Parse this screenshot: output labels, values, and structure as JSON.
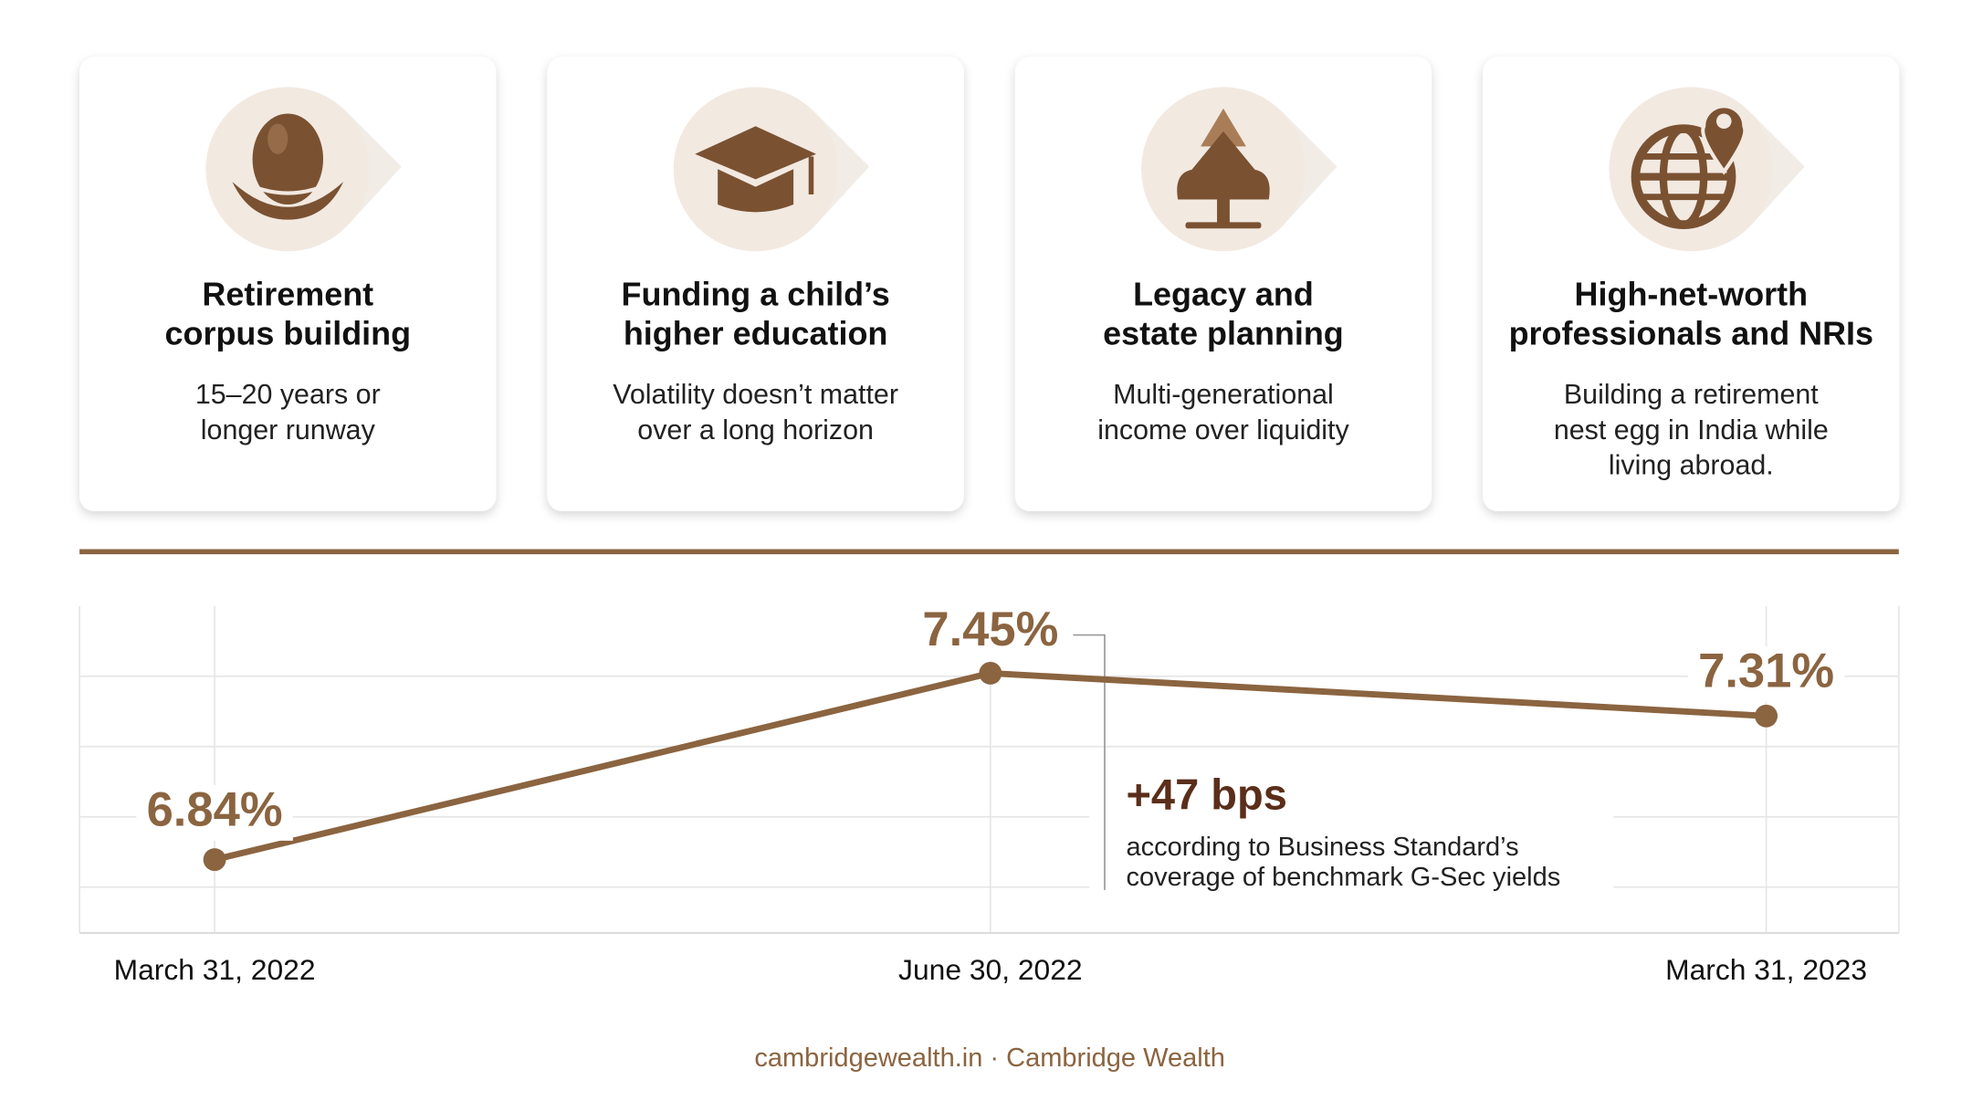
{
  "cards": [
    {
      "title": [
        "Retirement",
        "corpus building"
      ],
      "text": [
        "15–20 years or",
        "longer runway"
      ]
    },
    {
      "title": [
        "Funding a child’s",
        "higher education"
      ],
      "text": [
        "Volatility doesn’t matter",
        "over a long horizon"
      ]
    },
    {
      "title": [
        "Legacy and",
        "estate planning"
      ],
      "text": [
        "Multi-generational",
        "income over liquidity"
      ]
    },
    {
      "title": [
        "High-net-worth",
        "professionals and NRIs"
      ],
      "text": [
        "Building a retirement",
        "nest egg in India while",
        "living abroad."
      ]
    }
  ],
  "chart_data": {
    "type": "line",
    "categories": [
      "March 31, 2022",
      "June 30, 2022",
      "March 31, 2023"
    ],
    "values": [
      6.84,
      7.45,
      7.31
    ],
    "value_labels": [
      "6.84%",
      "7.45%",
      "7.31%"
    ],
    "color": "#8b6440",
    "ylim": [
      6.6,
      7.67
    ],
    "yticks": [
      6.75,
      6.98,
      7.21,
      7.44
    ],
    "grid": true,
    "annotation": {
      "title": "+47 bps",
      "text": [
        "according to Business Standard’s",
        "coverage of benchmark G-Sec yields"
      ]
    }
  },
  "footer": "cambridgewealth.in · Cambridge Wealth"
}
